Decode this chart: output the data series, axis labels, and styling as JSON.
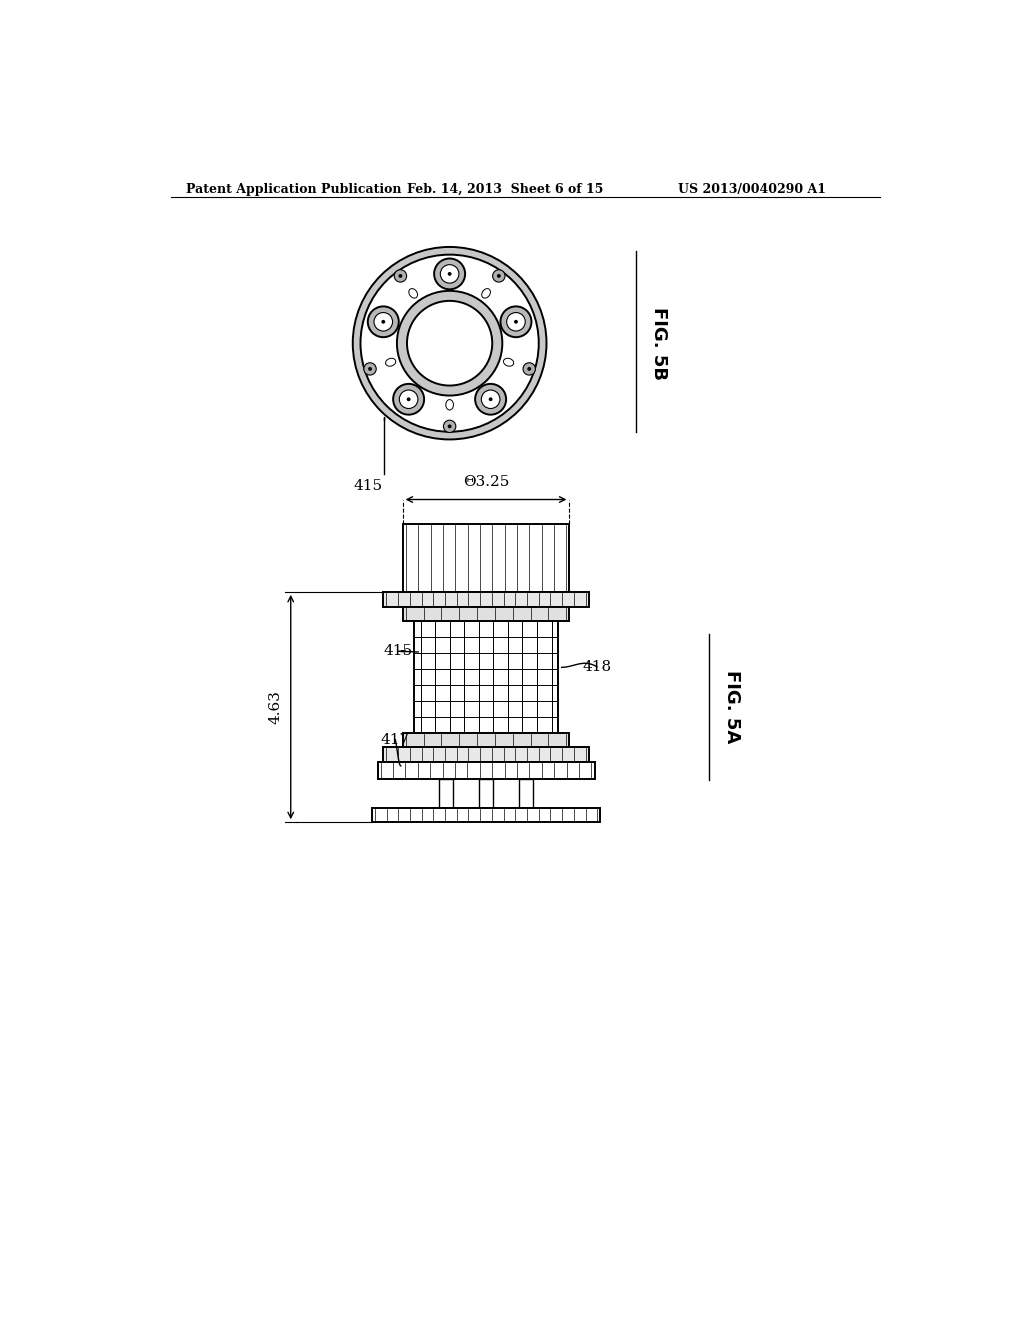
{
  "bg_color": "#ffffff",
  "line_color": "#000000",
  "header_left": "Patent Application Publication",
  "header_mid": "Feb. 14, 2013  Sheet 6 of 15",
  "header_right": "US 2013/0040290 A1",
  "fig5b_label": "FIG. 5B",
  "fig5a_label": "FIG. 5A",
  "label_415_top": "415",
  "label_415_side": "415",
  "label_417": "417",
  "label_418": "418",
  "dim_325": "Θ3.25",
  "dim_463": "4.63"
}
